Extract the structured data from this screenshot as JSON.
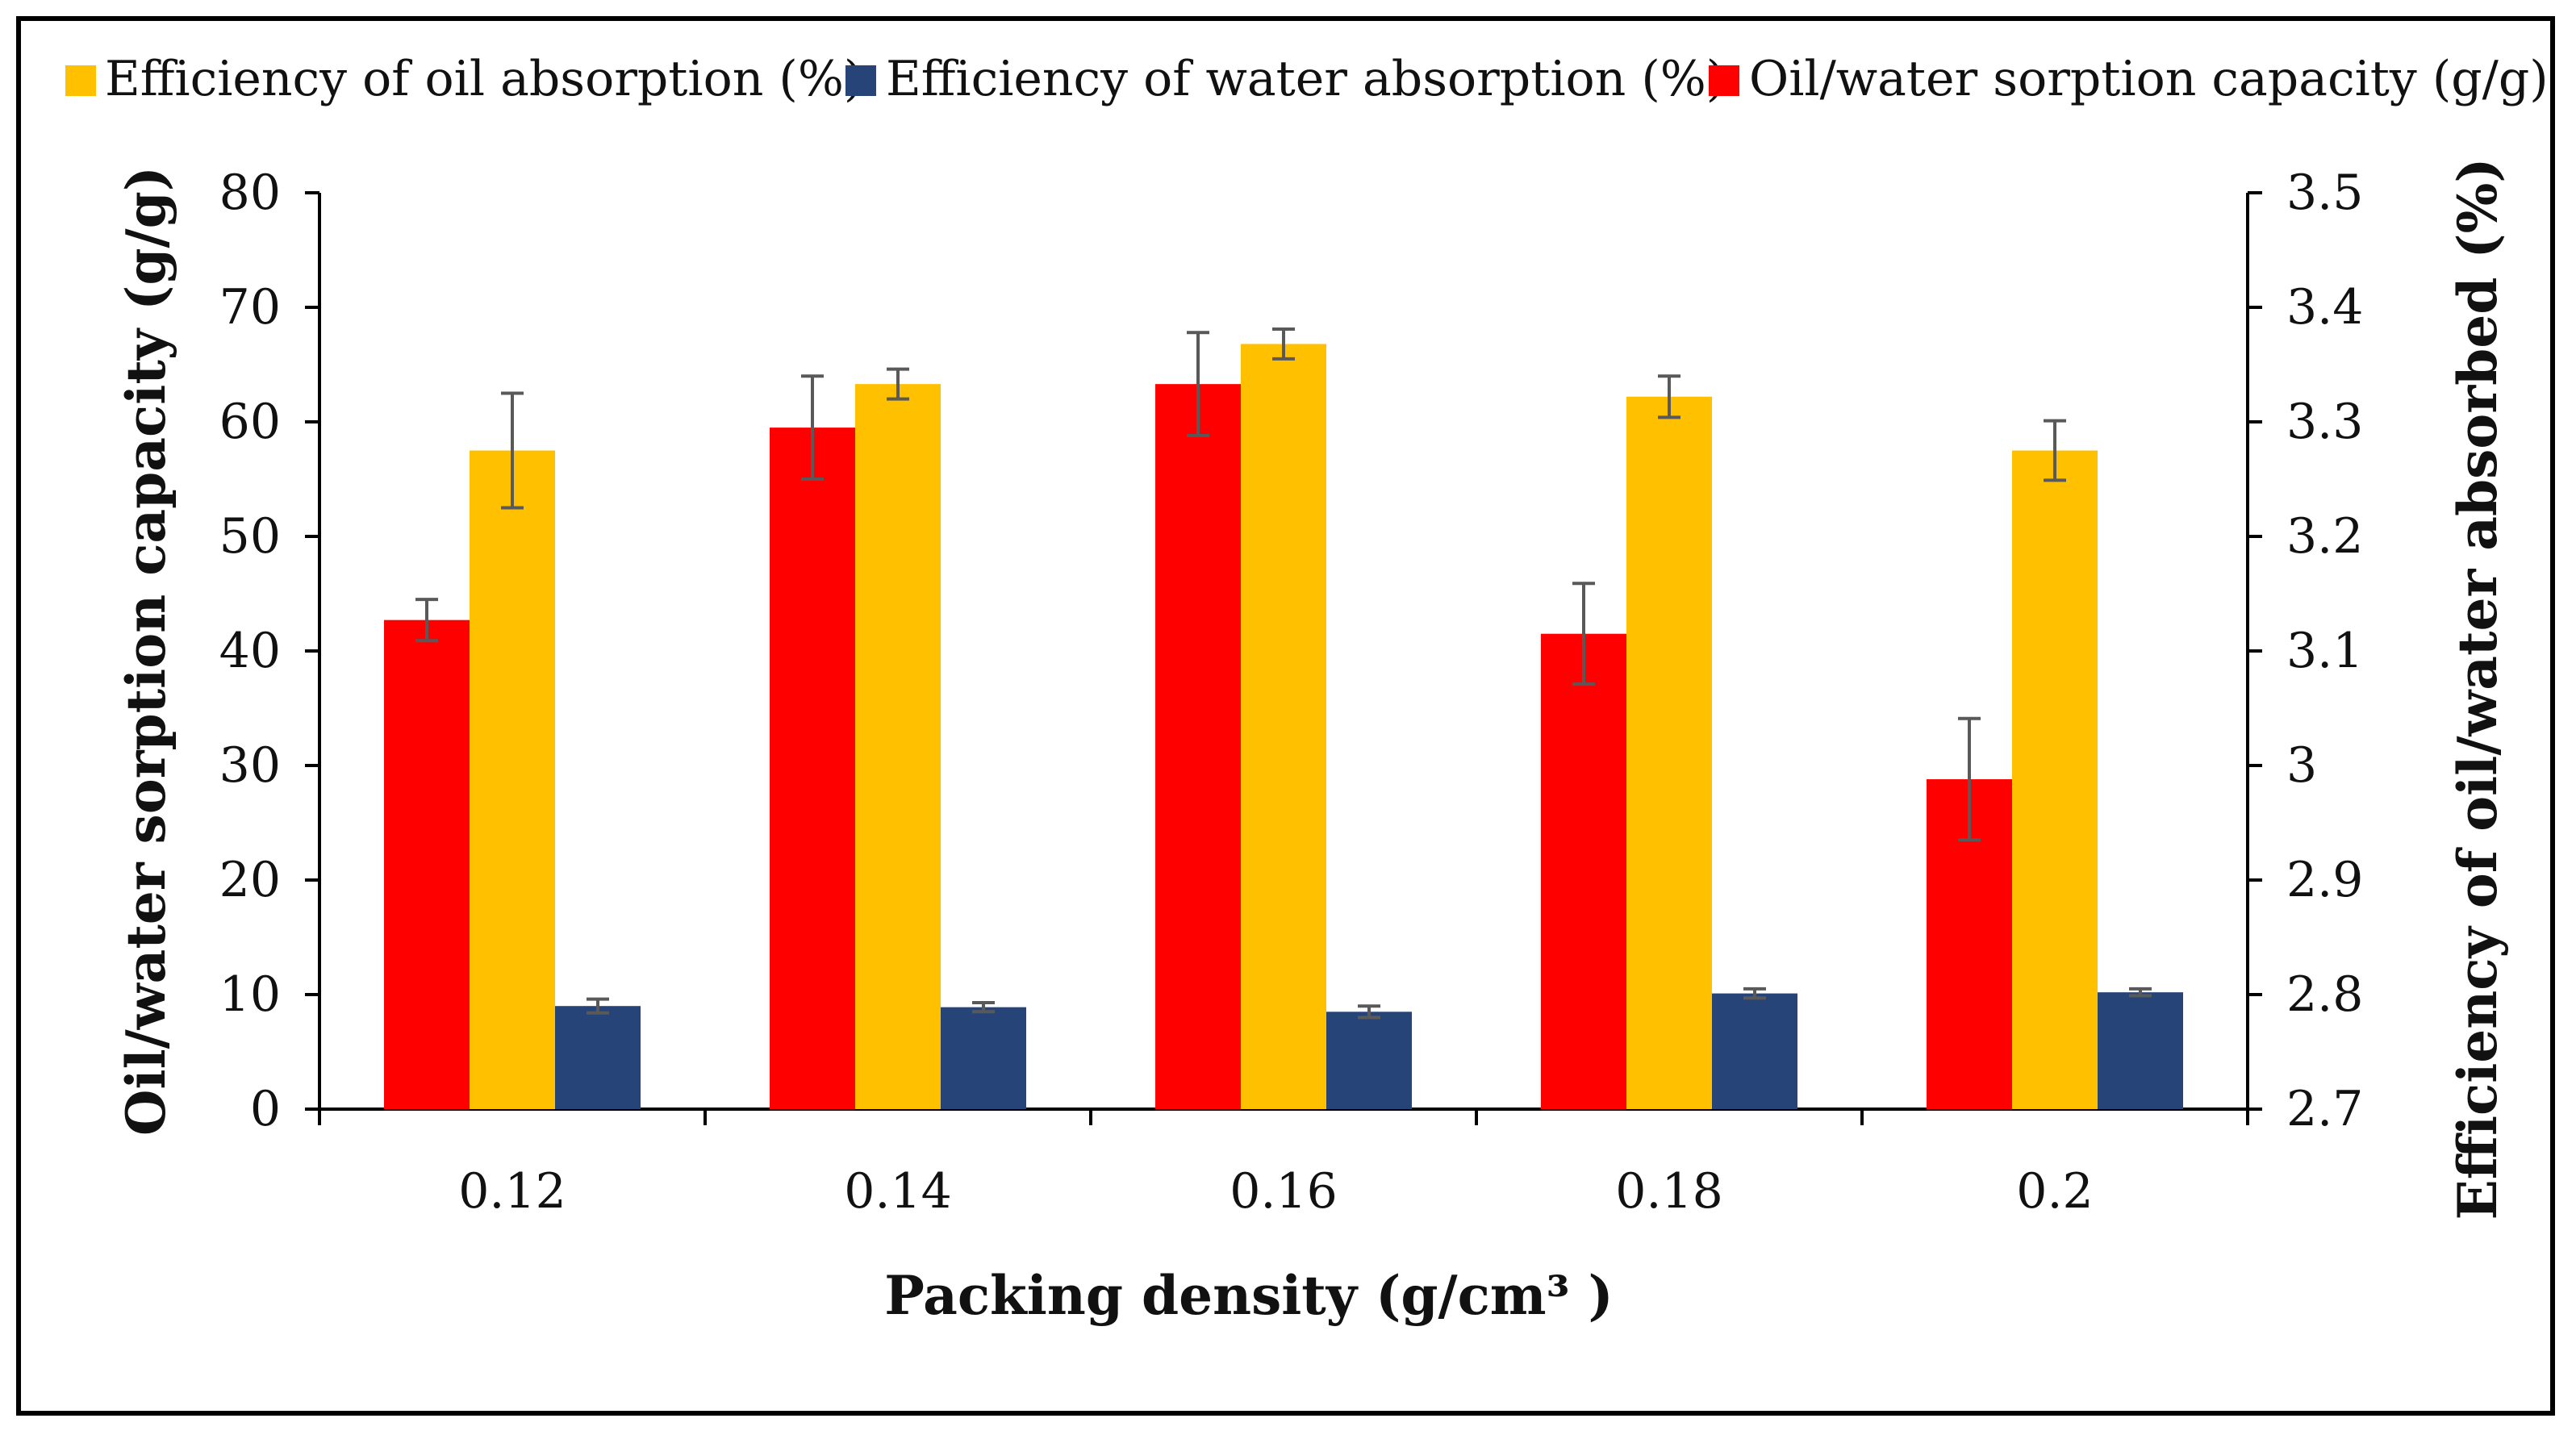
{
  "chart_data": {
    "type": "bar",
    "title": "",
    "xlabel": "Packing density (g/cm³ )",
    "ylabel": "Oil/water sorption capacity (g/g)",
    "y2label": "Efficiency of oil/water absorbed (%)",
    "categories": [
      "0.12",
      "0.14",
      "0.16",
      "0.18",
      "0.2"
    ],
    "ylim": [
      0,
      80
    ],
    "yticks": [
      "0",
      "10",
      "20",
      "30",
      "40",
      "50",
      "60",
      "70",
      "80"
    ],
    "y2lim": [
      2.7,
      3.5
    ],
    "y2ticks": [
      "2.7",
      "2.8",
      "2.9",
      "3",
      "3.1",
      "3.2",
      "3.3",
      "3.4",
      "3.5"
    ],
    "legend_position": "top",
    "legend": [
      {
        "name": "Efficiency of oil absorption (%)",
        "color": "#FFC000"
      },
      {
        "name": "Efficiency of water absorption (%)",
        "color": "#264478"
      },
      {
        "name": "Oil/water sorption capacity (g/g)",
        "color": "#FF0000"
      }
    ],
    "series": [
      {
        "name": "Oil/water sorption capacity (g/g)",
        "color": "#FF0000",
        "values": [
          42.7,
          59.5,
          63.3,
          41.5,
          28.8
        ],
        "errors": [
          1.8,
          4.5,
          4.5,
          4.4,
          5.3
        ]
      },
      {
        "name": "Efficiency of oil absorption (%)",
        "color": "#FFC000",
        "values": [
          57.5,
          63.3,
          66.8,
          62.2,
          57.5
        ],
        "errors": [
          5.0,
          1.3,
          1.3,
          1.8,
          2.6
        ]
      },
      {
        "name": "Efficiency of water absorption (%)",
        "color": "#264478",
        "values": [
          9.0,
          8.9,
          8.5,
          10.1,
          10.2
        ],
        "errors": [
          0.6,
          0.4,
          0.5,
          0.4,
          0.3
        ]
      }
    ]
  }
}
